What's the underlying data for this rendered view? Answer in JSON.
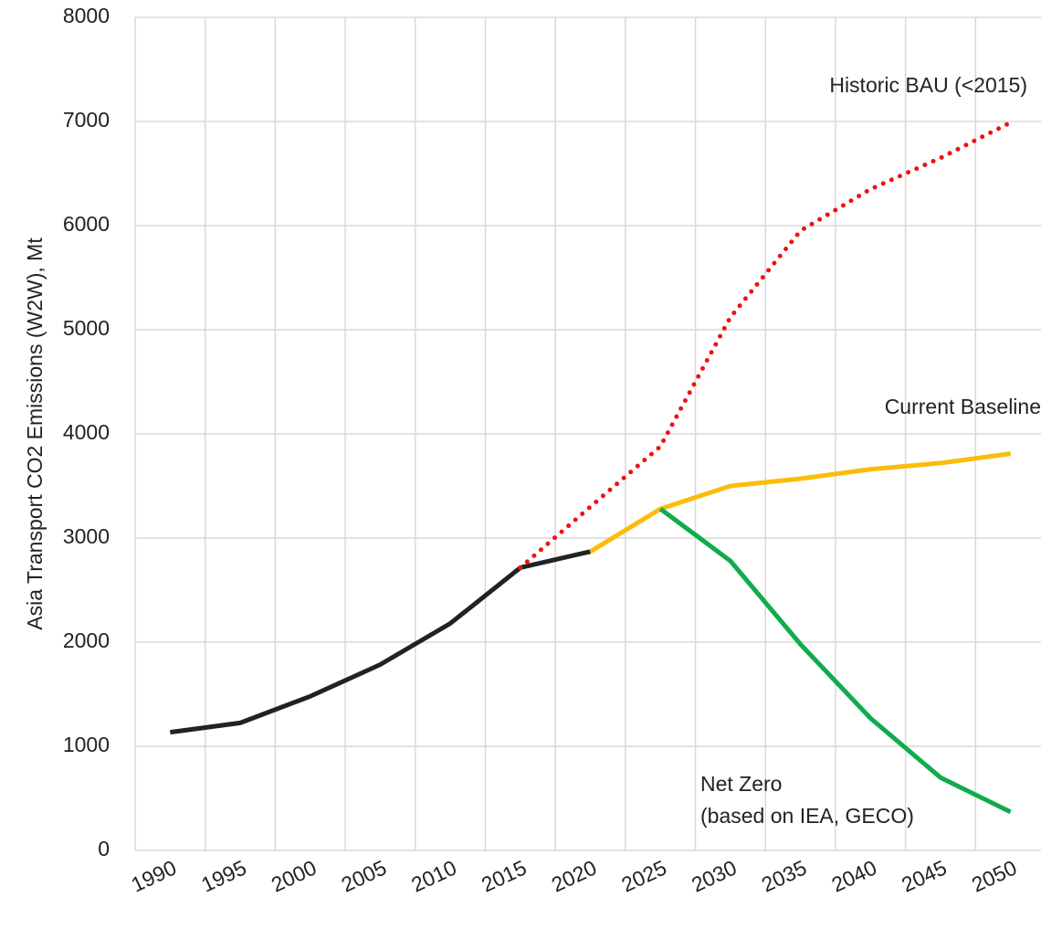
{
  "chart_data": {
    "type": "line",
    "y_label": "Asia Transport CO2 Emissions (W2W), Mt",
    "categories": [
      "1990",
      "1995",
      "2000",
      "2005",
      "2010",
      "2015",
      "2020",
      "2025",
      "2030",
      "2035",
      "2040",
      "2045",
      "2050"
    ],
    "series": [
      {
        "color": "#222222",
        "style": "solid",
        "values": [
          1135,
          1225,
          1480,
          1785,
          2180,
          2715,
          2870,
          null,
          null,
          null,
          null,
          null,
          null
        ]
      },
      {
        "name": "Historic BAU (<2015)",
        "color": "#ee1111",
        "style": "dotted",
        "values": [
          null,
          null,
          null,
          null,
          null,
          2715,
          3300,
          3880,
          5120,
          5950,
          6350,
          6650,
          6990
        ]
      },
      {
        "name": "Current Baseline",
        "color": "#fbbc0a",
        "style": "solid",
        "values": [
          null,
          null,
          null,
          null,
          null,
          null,
          2870,
          3280,
          3500,
          3570,
          3660,
          3720,
          3810
        ]
      },
      {
        "name": "Net Zero",
        "color": "#10ac4c",
        "style": "solid",
        "values": [
          null,
          null,
          null,
          null,
          null,
          null,
          null,
          3280,
          2780,
          1980,
          1270,
          700,
          370
        ]
      }
    ],
    "annotation": "(based on IEA, GECO)",
    "ylim": [
      0,
      8000
    ],
    "yticks": [
      0,
      1000,
      2000,
      3000,
      4000,
      5000,
      6000,
      7000,
      8000
    ],
    "grid": true
  }
}
